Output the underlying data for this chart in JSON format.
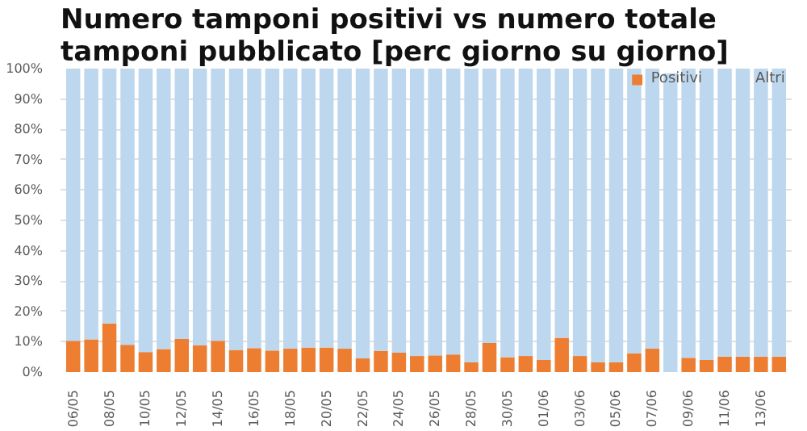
{
  "chart_data": {
    "type": "bar",
    "stacked": true,
    "title": "Numero tamponi positivi vs numero totale tamponi pubblicato [perc giorno su giorno]",
    "categories": [
      "06/05",
      null,
      "08/05",
      null,
      "10/05",
      null,
      "12/05",
      null,
      "14/05",
      null,
      "16/05",
      null,
      "18/05",
      null,
      "20/05",
      null,
      "22/05",
      null,
      "24/05",
      null,
      "26/05",
      null,
      "28/05",
      null,
      "30/05",
      null,
      "01/06",
      null,
      "03/06",
      null,
      "05/06",
      null,
      "07/06",
      null,
      "09/06",
      null,
      "11/06",
      null,
      "13/06",
      null
    ],
    "series": [
      {
        "name": "Positivi",
        "color": "#ed7d31",
        "values": [
          10.3,
          10.8,
          16.0,
          9.0,
          6.6,
          7.6,
          10.9,
          8.8,
          10.3,
          7.3,
          7.9,
          7.1,
          7.7,
          8.1,
          8.1,
          7.7,
          4.5,
          7.0,
          6.4,
          5.3,
          5.5,
          5.8,
          3.2,
          9.6,
          4.9,
          5.3,
          4.0,
          11.3,
          5.3,
          3.2,
          3.2,
          6.2,
          7.7,
          0,
          4.7,
          4.0,
          5.1,
          5.1,
          5.1,
          5.1
        ]
      },
      {
        "name": "Altri",
        "color": "#bdd7ee",
        "values": [
          89.7,
          89.2,
          84.0,
          91.0,
          93.4,
          92.4,
          89.1,
          91.2,
          89.7,
          92.7,
          92.1,
          92.9,
          92.3,
          91.9,
          91.9,
          92.3,
          95.5,
          93.0,
          93.6,
          94.7,
          94.5,
          94.2,
          96.8,
          90.4,
          95.1,
          94.7,
          96.0,
          88.7,
          94.7,
          96.8,
          96.8,
          93.8,
          92.3,
          98.5,
          95.3,
          96.0,
          94.9,
          94.9,
          94.9,
          94.9
        ]
      }
    ],
    "ylim": [
      0,
      100
    ],
    "yticks": [
      {
        "value": 0,
        "label": "0%"
      },
      {
        "value": 10,
        "label": "10%"
      },
      {
        "value": 20,
        "label": "20%"
      },
      {
        "value": 30,
        "label": "30%"
      },
      {
        "value": 40,
        "label": "40%"
      },
      {
        "value": 50,
        "label": "50%"
      },
      {
        "value": 60,
        "label": "60%"
      },
      {
        "value": 70,
        "label": "70%"
      },
      {
        "value": 80,
        "label": "80%"
      },
      {
        "value": 90,
        "label": "90%"
      },
      {
        "value": 100,
        "label": "100%"
      }
    ],
    "grid": "y",
    "legend": "top right"
  }
}
